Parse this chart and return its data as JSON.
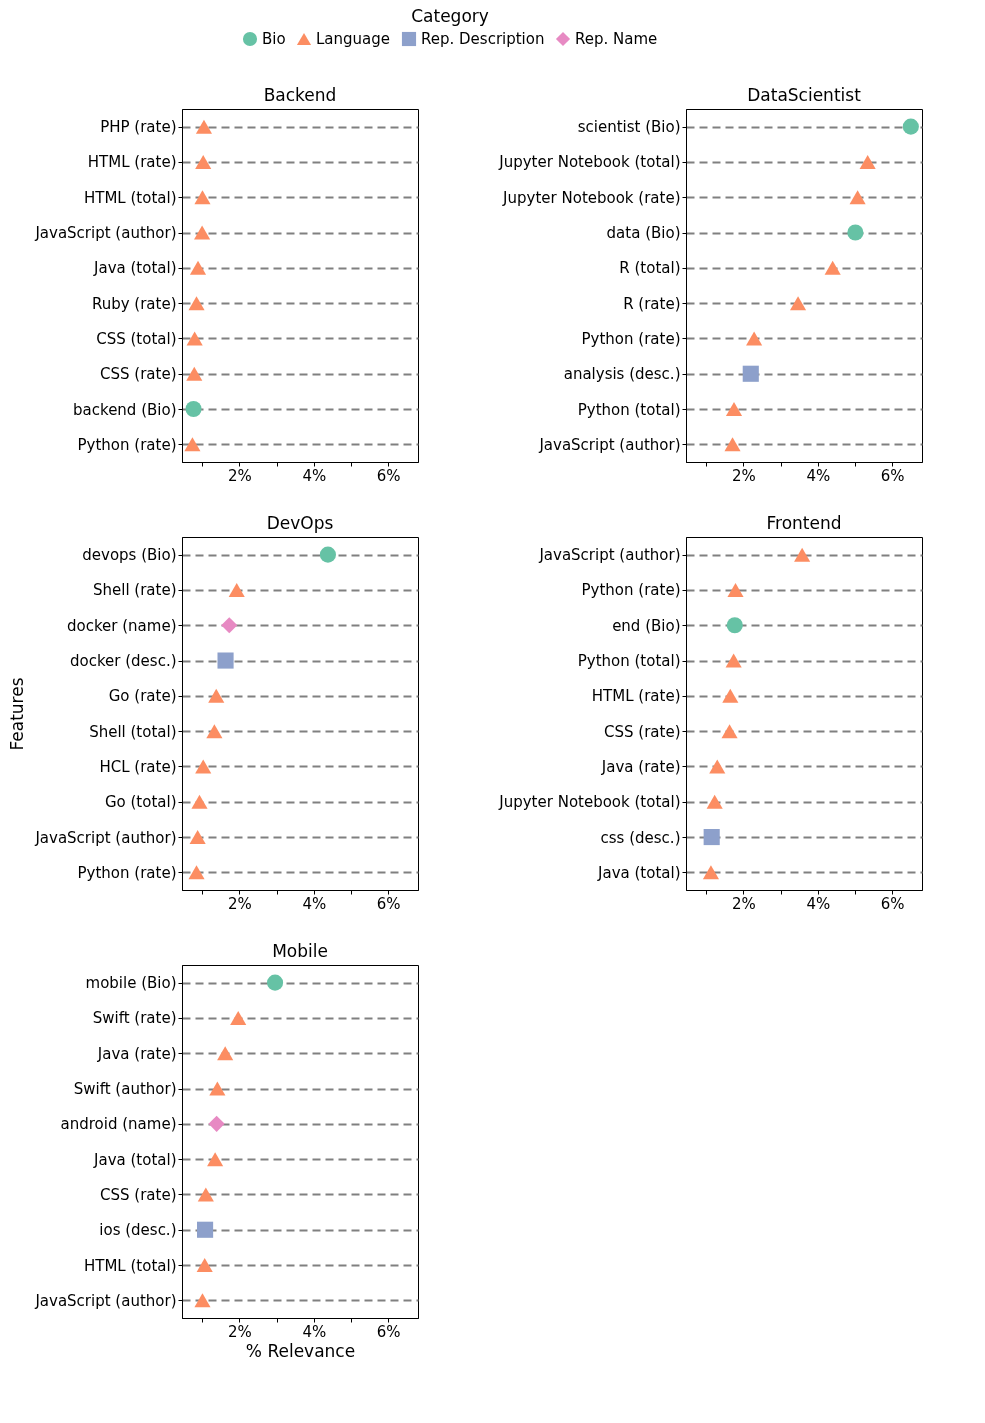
{
  "chart_data": [
    {
      "type": "scatter",
      "title": "Backend",
      "legend_title": "Category",
      "legend": "top",
      "orientation": "horizontal",
      "grid": "y",
      "xlim": [
        0.46,
        6.8
      ],
      "xticks": [
        {
          "value": 1,
          "label": null
        },
        {
          "value": 2,
          "label": "2%"
        },
        {
          "value": 3,
          "label": null
        },
        {
          "value": 4,
          "label": "4%"
        },
        {
          "value": 5,
          "label": null
        },
        {
          "value": 6,
          "label": "6%"
        }
      ],
      "categories": [
        "PHP (rate)",
        "HTML (rate)",
        "HTML (total)",
        "JavaScript (author)",
        "Java (total)",
        "Ruby (rate)",
        "CSS (total)",
        "CSS (rate)",
        "backend (Bio)",
        "Python (rate)"
      ],
      "series": [
        {
          "name": "Bio",
          "color": "#66c2a5",
          "marker": "circle",
          "values": [
            null,
            null,
            null,
            null,
            null,
            null,
            null,
            null,
            0.77,
            null
          ]
        },
        {
          "name": "Language",
          "color": "#fc8d62",
          "marker": "triangle",
          "values": [
            1.05,
            1.03,
            1.01,
            1.0,
            0.89,
            0.85,
            0.8,
            0.79,
            null,
            0.74
          ]
        },
        {
          "name": "Rep. Description",
          "color": "#8da0cb",
          "marker": "square",
          "values": [
            null,
            null,
            null,
            null,
            null,
            null,
            null,
            null,
            null,
            null
          ]
        },
        {
          "name": "Rep. Name",
          "color": "#e78ac3",
          "marker": "diamond",
          "values": [
            null,
            null,
            null,
            null,
            null,
            null,
            null,
            null,
            null,
            null
          ]
        }
      ]
    },
    {
      "type": "scatter",
      "title": "DataScientist",
      "orientation": "horizontal",
      "grid": "y",
      "xlim": [
        0.46,
        6.8
      ],
      "xticks": [
        {
          "value": 1,
          "label": null
        },
        {
          "value": 2,
          "label": "2%"
        },
        {
          "value": 3,
          "label": null
        },
        {
          "value": 4,
          "label": "4%"
        },
        {
          "value": 5,
          "label": null
        },
        {
          "value": 6,
          "label": "6%"
        }
      ],
      "categories": [
        "scientist (Bio)",
        "Jupyter Notebook (total)",
        "Jupyter Notebook (rate)",
        "data (Bio)",
        "R (total)",
        "R (rate)",
        "Python (rate)",
        "analysis (desc.)",
        "Python (total)",
        "JavaScript (author)"
      ],
      "series": [
        {
          "color": "#66c2a5",
          "marker": "circle",
          "values": [
            6.5,
            null,
            null,
            5.01,
            null,
            null,
            null,
            null,
            null,
            null
          ]
        },
        {
          "color": "#fc8d62",
          "marker": "triangle",
          "values": [
            null,
            5.34,
            5.07,
            null,
            4.4,
            3.47,
            2.29,
            null,
            1.75,
            1.71
          ]
        },
        {
          "color": "#8da0cb",
          "marker": "square",
          "values": [
            null,
            null,
            null,
            null,
            null,
            null,
            null,
            2.2,
            null,
            null
          ]
        }
      ]
    },
    {
      "type": "scatter",
      "title": "DevOps",
      "ylabel": "Features",
      "orientation": "horizontal",
      "grid": "y",
      "xlim": [
        0.46,
        6.8
      ],
      "xticks": [
        {
          "value": 1,
          "label": null
        },
        {
          "value": 2,
          "label": "2%"
        },
        {
          "value": 3,
          "label": null
        },
        {
          "value": 4,
          "label": "4%"
        },
        {
          "value": 5,
          "label": null
        },
        {
          "value": 6,
          "label": "6%"
        }
      ],
      "categories": [
        "devops (Bio)",
        "Shell (rate)",
        "docker (name)",
        "docker (desc.)",
        "Go (rate)",
        "Shell (total)",
        "HCL (rate)",
        "Go (total)",
        "JavaScript (author)",
        "Python (rate)"
      ],
      "series": [
        {
          "color": "#66c2a5",
          "marker": "circle",
          "values": [
            4.38,
            null,
            null,
            null,
            null,
            null,
            null,
            null,
            null,
            null
          ]
        },
        {
          "color": "#fc8d62",
          "marker": "triangle",
          "values": [
            null,
            1.93,
            null,
            null,
            1.38,
            1.33,
            1.03,
            0.93,
            0.88,
            0.85
          ]
        },
        {
          "color": "#8da0cb",
          "marker": "square",
          "values": [
            null,
            null,
            null,
            1.63,
            null,
            null,
            null,
            null,
            null,
            null
          ]
        },
        {
          "color": "#e78ac3",
          "marker": "diamond",
          "values": [
            null,
            null,
            1.73,
            null,
            null,
            null,
            null,
            null,
            null,
            null
          ]
        }
      ]
    },
    {
      "type": "scatter",
      "title": "Frontend",
      "orientation": "horizontal",
      "grid": "y",
      "xlim": [
        0.46,
        6.8
      ],
      "xticks": [
        {
          "value": 1,
          "label": null
        },
        {
          "value": 2,
          "label": "2%"
        },
        {
          "value": 3,
          "label": null
        },
        {
          "value": 4,
          "label": "4%"
        },
        {
          "value": 5,
          "label": null
        },
        {
          "value": 6,
          "label": "6%"
        }
      ],
      "categories": [
        "JavaScript (author)",
        "Python (rate)",
        "end (Bio)",
        "Python (total)",
        "HTML (rate)",
        "CSS (rate)",
        "Java (rate)",
        "Jupyter Notebook (total)",
        "css (desc.)",
        "Java (total)"
      ],
      "series": [
        {
          "color": "#66c2a5",
          "marker": "circle",
          "values": [
            null,
            null,
            1.77,
            null,
            null,
            null,
            null,
            null,
            null,
            null
          ]
        },
        {
          "color": "#fc8d62",
          "marker": "triangle",
          "values": [
            3.58,
            1.79,
            null,
            1.74,
            1.65,
            1.63,
            1.3,
            1.23,
            null,
            1.13
          ]
        },
        {
          "color": "#8da0cb",
          "marker": "square",
          "values": [
            null,
            null,
            null,
            null,
            null,
            null,
            null,
            null,
            1.15,
            null
          ]
        }
      ]
    },
    {
      "type": "scatter",
      "title": "Mobile",
      "xlabel": "% Relevance",
      "orientation": "horizontal",
      "grid": "y",
      "xlim": [
        0.46,
        6.8
      ],
      "xticks": [
        {
          "value": 1,
          "label": null
        },
        {
          "value": 2,
          "label": "2%"
        },
        {
          "value": 3,
          "label": null
        },
        {
          "value": 4,
          "label": "4%"
        },
        {
          "value": 5,
          "label": null
        },
        {
          "value": 6,
          "label": "6%"
        }
      ],
      "categories": [
        "mobile (Bio)",
        "Swift (rate)",
        "Java (rate)",
        "Swift (author)",
        "android (name)",
        "Java (total)",
        "CSS (rate)",
        "ios (desc.)",
        "HTML (total)",
        "JavaScript (author)"
      ],
      "series": [
        {
          "color": "#66c2a5",
          "marker": "circle",
          "values": [
            2.96,
            null,
            null,
            null,
            null,
            null,
            null,
            null,
            null,
            null
          ]
        },
        {
          "color": "#fc8d62",
          "marker": "triangle",
          "values": [
            null,
            1.97,
            1.62,
            1.41,
            null,
            1.35,
            1.1,
            null,
            1.07,
            1.01
          ]
        },
        {
          "color": "#8da0cb",
          "marker": "square",
          "values": [
            null,
            null,
            null,
            null,
            null,
            null,
            null,
            1.08,
            null,
            null
          ]
        },
        {
          "color": "#e78ac3",
          "marker": "diamond",
          "values": [
            null,
            null,
            null,
            null,
            1.39,
            null,
            null,
            null,
            null,
            null
          ]
        }
      ]
    }
  ]
}
